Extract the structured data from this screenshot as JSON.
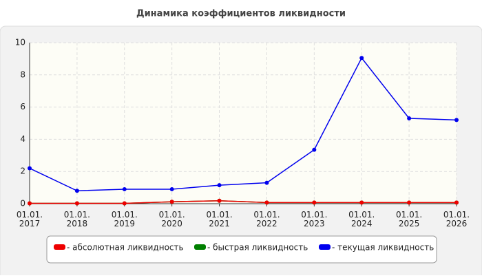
{
  "chart_data": {
    "type": "line",
    "title": "Динамика коэффициентов ликвидности",
    "categories": [
      "01.01.\n2017",
      "01.01.\n2018",
      "01.01.\n2019",
      "01.01.\n2020",
      "01.01.\n2021",
      "01.01.\n2022",
      "01.01.\n2023",
      "01.01.\n2024",
      "01.01.\n2025",
      "01.01.\n2026"
    ],
    "series": [
      {
        "name": "- абсолютная ликвидность",
        "color": "#ee0000",
        "values": [
          0.02,
          0.02,
          0.02,
          0.12,
          0.18,
          0.07,
          0.07,
          0.07,
          0.07,
          0.07
        ]
      },
      {
        "name": "- быстрая ликвидность",
        "color": "#008000",
        "values": [
          0.02,
          0.02,
          0.02,
          0.12,
          0.18,
          0.07,
          0.07,
          0.07,
          0.07,
          0.07
        ]
      },
      {
        "name": "- текущая ликвидность",
        "color": "#0000ee",
        "values": [
          2.2,
          0.8,
          0.9,
          0.9,
          1.15,
          1.3,
          3.35,
          9.05,
          5.3,
          5.2
        ]
      }
    ],
    "ylim": [
      0,
      10
    ],
    "yticks": [
      0,
      2,
      4,
      6,
      8,
      10
    ],
    "grid": true
  }
}
